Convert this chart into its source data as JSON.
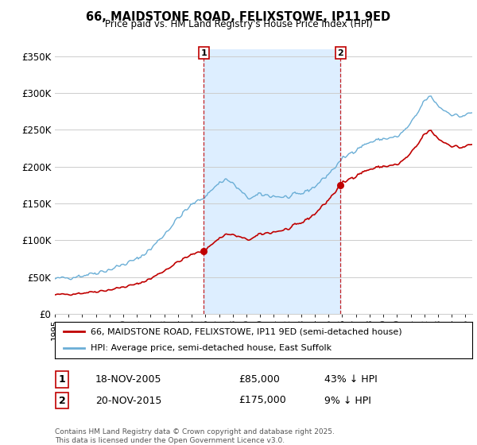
{
  "title": "66, MAIDSTONE ROAD, FELIXSTOWE, IP11 9ED",
  "subtitle": "Price paid vs. HM Land Registry's House Price Index (HPI)",
  "ylim": [
    0,
    360000
  ],
  "yticks": [
    0,
    50000,
    100000,
    150000,
    200000,
    250000,
    300000,
    350000
  ],
  "ytick_labels": [
    "£0",
    "£50K",
    "£100K",
    "£150K",
    "£200K",
    "£250K",
    "£300K",
    "£350K"
  ],
  "color_hpi": "#6aaed6",
  "color_price": "#c00000",
  "color_vline": "#c00000",
  "color_shade": "#ddeeff",
  "marker1_date": 2005.88,
  "marker2_date": 2015.88,
  "marker1_price": 85000,
  "marker2_price": 175000,
  "legend_line1": "66, MAIDSTONE ROAD, FELIXSTOWE, IP11 9ED (semi-detached house)",
  "legend_line2": "HPI: Average price, semi-detached house, East Suffolk",
  "table_row1": [
    "1",
    "18-NOV-2005",
    "£85,000",
    "43% ↓ HPI"
  ],
  "table_row2": [
    "2",
    "20-NOV-2015",
    "£175,000",
    "9% ↓ HPI"
  ],
  "footer": "Contains HM Land Registry data © Crown copyright and database right 2025.\nThis data is licensed under the Open Government Licence v3.0.",
  "background_color": "#ffffff",
  "grid_color": "#cccccc"
}
